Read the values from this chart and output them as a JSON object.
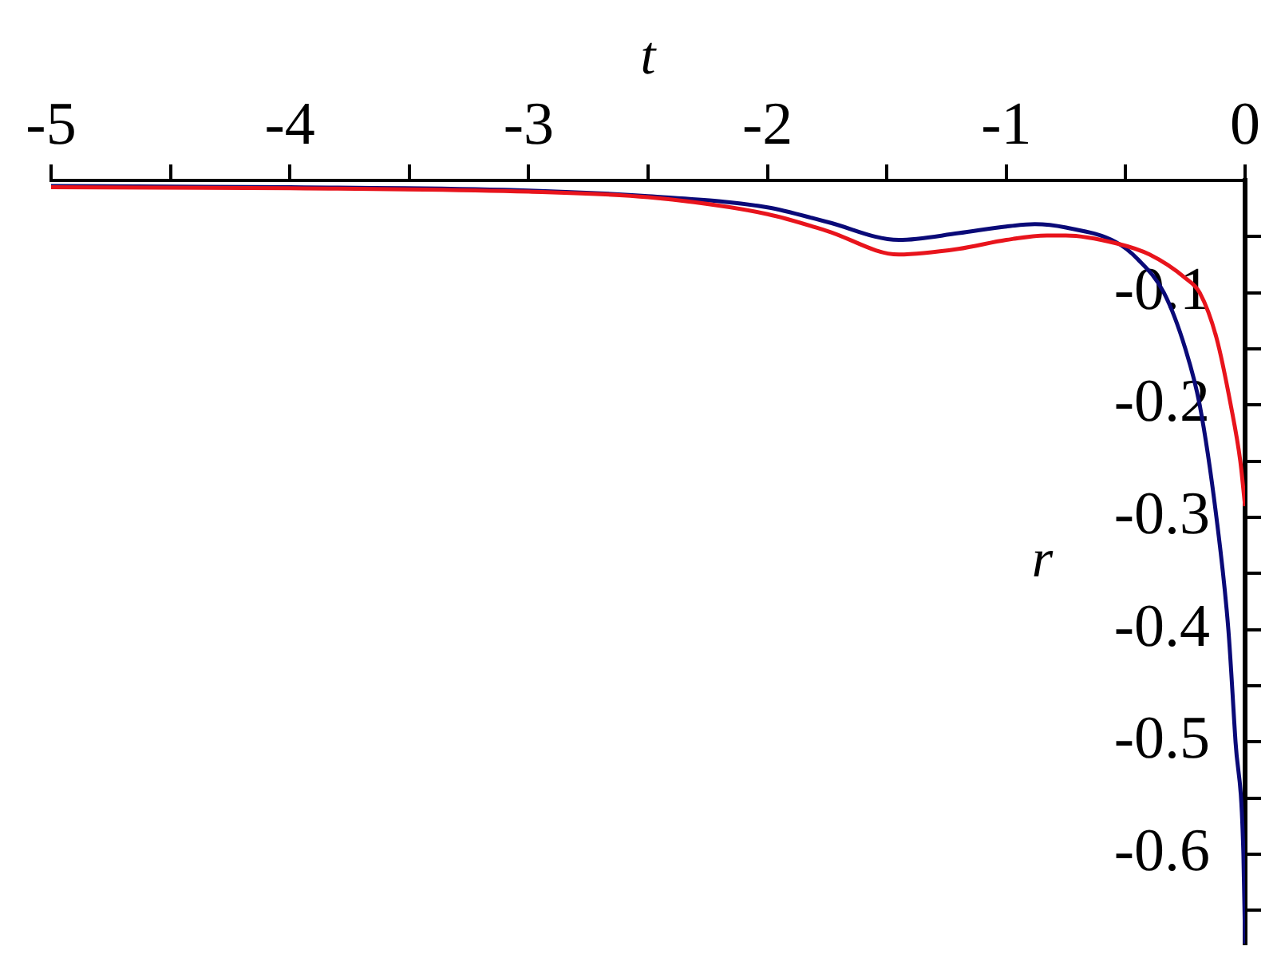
{
  "chart_data": {
    "type": "line",
    "xlabel": "t",
    "ylabel": "r",
    "xlim": [
      -5,
      0
    ],
    "ylim": [
      -0.68,
      0
    ],
    "xticks": [
      -5,
      {
        "value": -4.5,
        "label": null
      },
      -4,
      {
        "value": -3.5,
        "label": null
      },
      -3,
      {
        "value": -2.5,
        "label": null
      },
      -2,
      {
        "value": -1.5,
        "label": null
      },
      -1,
      {
        "value": -0.5,
        "label": null
      },
      0
    ],
    "yticks": [
      {
        "value": -0.05,
        "label": null
      },
      -0.1,
      {
        "value": -0.15,
        "label": null
      },
      -0.2,
      {
        "value": -0.25,
        "label": null
      },
      -0.3,
      {
        "value": -0.35,
        "label": null
      },
      -0.4,
      {
        "value": -0.45,
        "label": null
      },
      -0.5,
      {
        "value": -0.55,
        "label": null
      },
      -0.6,
      {
        "value": -0.65,
        "label": null
      }
    ],
    "series": [
      {
        "color": "#e8141c",
        "x": [
          -5,
          -4,
          -3,
          -2.5,
          -2,
          -1.75,
          -1.45,
          -1.2,
          -1,
          -0.83,
          -0.75,
          -0.54,
          -0.4,
          -0.25,
          -0.19,
          -0.12,
          -0.06,
          -0.02,
          0
        ],
        "values": [
          -0.006,
          -0.007,
          -0.01,
          -0.015,
          -0.03,
          -0.045,
          -0.066,
          -0.061,
          -0.053,
          -0.049,
          -0.049,
          -0.056,
          -0.066,
          -0.087,
          -0.1,
          -0.14,
          -0.2,
          -0.25,
          -0.29
        ]
      },
      {
        "color": "#0a0a78",
        "x": [
          -5,
          -4,
          -3,
          -2.5,
          -2,
          -1.75,
          -1.45,
          -1.2,
          -1,
          -0.88,
          -0.75,
          -0.54,
          -0.45,
          -0.34,
          -0.25,
          -0.19,
          -0.12,
          -0.07,
          -0.04,
          -0.007,
          0
        ],
        "values": [
          -0.005,
          -0.006,
          -0.009,
          -0.014,
          -0.024,
          -0.037,
          -0.053,
          -0.047,
          -0.041,
          -0.039,
          -0.042,
          -0.055,
          -0.07,
          -0.1,
          -0.15,
          -0.2,
          -0.3,
          -0.4,
          -0.5,
          -0.6,
          -0.68
        ]
      }
    ]
  }
}
